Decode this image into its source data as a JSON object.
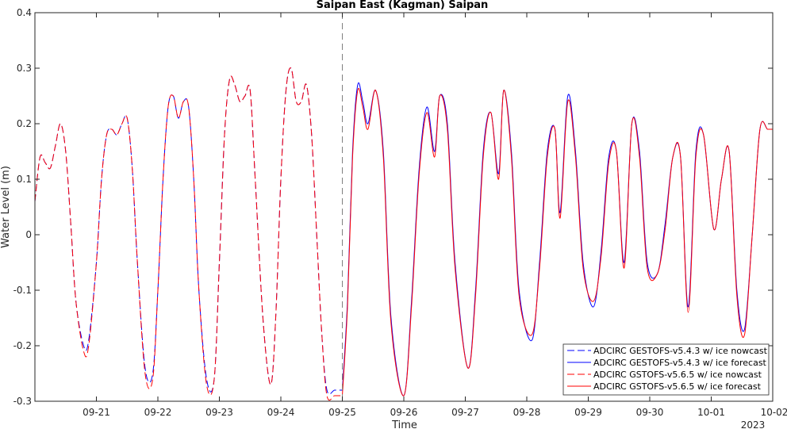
{
  "chart_data": {
    "type": "line",
    "title": "Saipan East (Kagman) Saipan",
    "xlabel": "Time",
    "ylabel": "Water Level (m)",
    "year_label": "2023",
    "ylim": [
      -0.3,
      0.4
    ],
    "yticks": [
      -0.3,
      -0.2,
      -0.1,
      0,
      0.1,
      0.2,
      0.3,
      0.4
    ],
    "ytick_labels": [
      "-0.3",
      "-0.2",
      "-0.1",
      "0",
      "0.1",
      "0.2",
      "0.3",
      "0.4"
    ],
    "xlim": [
      "2023-09-20 00:00",
      "2023-10-02 00:00"
    ],
    "xticks": [
      "2023-09-21",
      "2023-09-22",
      "2023-09-23",
      "2023-09-24",
      "2023-09-25",
      "2023-09-26",
      "2023-09-27",
      "2023-09-28",
      "2023-09-29",
      "2023-09-30",
      "2023-10-01",
      "2023-10-02"
    ],
    "xtick_labels": [
      "09-21",
      "09-22",
      "09-23",
      "09-24",
      "09-25",
      "09-26",
      "09-27",
      "09-28",
      "09-29",
      "09-30",
      "10-01",
      "10-02"
    ],
    "nowcast_forecast_divider": "2023-09-25 00:00",
    "grid": false,
    "legend_position": "bottom-right",
    "series": [
      {
        "name": "ADCIRC GESTOFS-v5.4.3 w/ ice nowcast",
        "color": "#0000ff",
        "style": "dashed",
        "x": [
          "09-20 00:00",
          "09-20 02:00",
          "09-20 04:00",
          "09-20 06:00",
          "09-20 08:00",
          "09-20 10:00",
          "09-20 12:00",
          "09-20 14:00",
          "09-20 16:00",
          "09-20 19:00",
          "09-20 21:00",
          "09-21 00:00",
          "09-21 02:00",
          "09-21 04:00",
          "09-21 06:00",
          "09-21 08:00",
          "09-21 10:00",
          "09-21 12:00",
          "09-21 14:00",
          "09-21 16:00",
          "09-21 19:00",
          "09-21 22:00",
          "09-22 00:00",
          "09-22 02:00",
          "09-22 04:00",
          "09-22 06:00",
          "09-22 08:00",
          "09-22 10:00",
          "09-22 12:00",
          "09-22 14:00",
          "09-22 16:00",
          "09-22 19:00",
          "09-22 22:00",
          "09-23 00:00",
          "09-23 02:00",
          "09-23 04:00",
          "09-23 06:00",
          "09-23 08:00",
          "09-23 10:00",
          "09-23 12:00",
          "09-23 14:00",
          "09-23 17:00",
          "09-23 20:00",
          "09-23 22:00",
          "09-24 00:00",
          "09-24 02:00",
          "09-24 04:00",
          "09-24 06:00",
          "09-24 08:00",
          "09-24 10:00",
          "09-24 12:00",
          "09-24 14:00",
          "09-24 16:00",
          "09-24 18:00",
          "09-24 21:00",
          "09-25 00:00"
        ],
        "y": [
          0.06,
          0.14,
          0.13,
          0.12,
          0.16,
          0.2,
          0.15,
          0.02,
          -0.12,
          -0.2,
          -0.19,
          -0.05,
          0.1,
          0.18,
          0.19,
          0.18,
          0.2,
          0.21,
          0.12,
          -0.05,
          -0.24,
          -0.25,
          -0.1,
          0.1,
          0.23,
          0.25,
          0.21,
          0.24,
          0.23,
          0.1,
          -0.1,
          -0.26,
          -0.26,
          -0.05,
          0.18,
          0.28,
          0.27,
          0.24,
          0.25,
          0.26,
          0.1,
          -0.15,
          -0.27,
          -0.15,
          0.1,
          0.26,
          0.3,
          0.24,
          0.24,
          0.27,
          0.18,
          0.0,
          -0.18,
          -0.28,
          -0.28,
          -0.28
        ]
      },
      {
        "name": "ADCIRC GESTOFS-v5.4.3 w/ ice forecast",
        "color": "#0000ff",
        "style": "solid",
        "x": [
          "09-25 00:00",
          "09-25 02:00",
          "09-25 04:00",
          "09-25 06:00",
          "09-25 08:00",
          "09-25 10:00",
          "09-25 13:00",
          "09-25 16:00",
          "09-25 19:00",
          "09-26 00:00",
          "09-26 03:00",
          "09-26 06:00",
          "09-26 09:00",
          "09-26 12:00",
          "09-26 14:00",
          "09-26 17:00",
          "09-26 20:00",
          "09-27 01:00",
          "09-27 04:00",
          "09-27 07:00",
          "09-27 10:00",
          "09-27 13:00",
          "09-27 15:00",
          "09-27 18:00",
          "09-27 21:00",
          "09-28 02:00",
          "09-28 05:00",
          "09-28 08:00",
          "09-28 11:00",
          "09-28 13:00",
          "09-28 16:00",
          "09-28 19:00",
          "09-28 22:00",
          "09-29 02:00",
          "09-29 05:00",
          "09-29 08:00",
          "09-29 11:00",
          "09-29 14:00",
          "09-29 17:00",
          "09-29 20:00",
          "09-29 23:00",
          "09-30 03:00",
          "09-30 06:00",
          "09-30 09:00",
          "09-30 12:00",
          "09-30 15:00",
          "09-30 18:00",
          "09-30 21:00",
          "10-01 01:00",
          "10-01 04:00",
          "10-01 07:00",
          "10-01 10:00",
          "10-01 13:00",
          "10-01 16:00",
          "10-01 19:00",
          "10-01 22:00",
          "10-02 00:00"
        ],
        "y": [
          -0.28,
          -0.12,
          0.15,
          0.27,
          0.24,
          0.2,
          0.26,
          0.15,
          -0.15,
          -0.29,
          -0.12,
          0.12,
          0.23,
          0.15,
          0.25,
          0.2,
          -0.05,
          -0.24,
          -0.1,
          0.15,
          0.22,
          0.11,
          0.26,
          0.15,
          -0.1,
          -0.19,
          -0.05,
          0.15,
          0.19,
          0.04,
          0.25,
          0.15,
          -0.05,
          -0.13,
          -0.03,
          0.14,
          0.15,
          -0.05,
          0.2,
          0.15,
          -0.05,
          -0.07,
          0.02,
          0.14,
          0.14,
          -0.13,
          0.15,
          0.18,
          0.01,
          0.1,
          0.15,
          -0.1,
          -0.17,
          0.0,
          0.19,
          0.19,
          0.19
        ]
      },
      {
        "name": "ADCIRC GSTOFS-v5.6.5 w/ ice nowcast",
        "color": "#ff0000",
        "style": "dashed",
        "x": [
          "09-20 00:00",
          "09-20 02:00",
          "09-20 04:00",
          "09-20 06:00",
          "09-20 08:00",
          "09-20 10:00",
          "09-20 12:00",
          "09-20 14:00",
          "09-20 16:00",
          "09-20 19:00",
          "09-20 21:00",
          "09-21 00:00",
          "09-21 02:00",
          "09-21 04:00",
          "09-21 06:00",
          "09-21 08:00",
          "09-21 10:00",
          "09-21 12:00",
          "09-21 14:00",
          "09-21 16:00",
          "09-21 19:00",
          "09-21 22:00",
          "09-22 00:00",
          "09-22 02:00",
          "09-22 04:00",
          "09-22 06:00",
          "09-22 08:00",
          "09-22 10:00",
          "09-22 12:00",
          "09-22 14:00",
          "09-22 16:00",
          "09-22 19:00",
          "09-22 22:00",
          "09-23 00:00",
          "09-23 02:00",
          "09-23 04:00",
          "09-23 06:00",
          "09-23 08:00",
          "09-23 10:00",
          "09-23 12:00",
          "09-23 14:00",
          "09-23 17:00",
          "09-23 20:00",
          "09-23 22:00",
          "09-24 00:00",
          "09-24 02:00",
          "09-24 04:00",
          "09-24 06:00",
          "09-24 08:00",
          "09-24 10:00",
          "09-24 12:00",
          "09-24 14:00",
          "09-24 16:00",
          "09-24 18:00",
          "09-24 21:00",
          "09-25 00:00"
        ],
        "y": [
          0.06,
          0.14,
          0.13,
          0.12,
          0.16,
          0.2,
          0.15,
          0.02,
          -0.12,
          -0.21,
          -0.2,
          -0.05,
          0.1,
          0.18,
          0.19,
          0.18,
          0.2,
          0.21,
          0.12,
          -0.05,
          -0.25,
          -0.26,
          -0.1,
          0.1,
          0.23,
          0.25,
          0.21,
          0.24,
          0.23,
          0.1,
          -0.1,
          -0.27,
          -0.26,
          -0.05,
          0.18,
          0.28,
          0.27,
          0.24,
          0.25,
          0.26,
          0.1,
          -0.15,
          -0.27,
          -0.15,
          0.1,
          0.26,
          0.3,
          0.24,
          0.24,
          0.27,
          0.18,
          0.0,
          -0.18,
          -0.29,
          -0.29,
          -0.29
        ]
      },
      {
        "name": "ADCIRC GSTOFS-v5.6.5 w/ ice forecast",
        "color": "#ff0000",
        "style": "solid",
        "x": [
          "09-25 00:00",
          "09-25 02:00",
          "09-25 04:00",
          "09-25 06:00",
          "09-25 08:00",
          "09-25 10:00",
          "09-25 13:00",
          "09-25 16:00",
          "09-25 19:00",
          "09-26 00:00",
          "09-26 03:00",
          "09-26 06:00",
          "09-26 09:00",
          "09-26 12:00",
          "09-26 14:00",
          "09-26 17:00",
          "09-26 20:00",
          "09-27 01:00",
          "09-27 04:00",
          "09-27 07:00",
          "09-27 10:00",
          "09-27 13:00",
          "09-27 15:00",
          "09-27 18:00",
          "09-27 21:00",
          "09-28 02:00",
          "09-28 05:00",
          "09-28 08:00",
          "09-28 11:00",
          "09-28 13:00",
          "09-28 16:00",
          "09-28 19:00",
          "09-28 22:00",
          "09-29 02:00",
          "09-29 05:00",
          "09-29 08:00",
          "09-29 11:00",
          "09-29 14:00",
          "09-29 17:00",
          "09-29 20:00",
          "09-29 23:00",
          "09-30 03:00",
          "09-30 06:00",
          "09-30 09:00",
          "09-30 12:00",
          "09-30 15:00",
          "09-30 18:00",
          "09-30 21:00",
          "10-01 01:00",
          "10-01 04:00",
          "10-01 07:00",
          "10-01 10:00",
          "10-01 13:00",
          "10-01 16:00",
          "10-01 19:00",
          "10-01 22:00",
          "10-02 00:00"
        ],
        "y": [
          -0.29,
          -0.13,
          0.14,
          0.26,
          0.23,
          0.19,
          0.26,
          0.14,
          -0.16,
          -0.29,
          -0.13,
          0.11,
          0.22,
          0.14,
          0.25,
          0.19,
          -0.06,
          -0.24,
          -0.11,
          0.14,
          0.22,
          0.1,
          0.26,
          0.14,
          -0.11,
          -0.18,
          -0.06,
          0.14,
          0.19,
          0.03,
          0.24,
          0.14,
          -0.06,
          -0.12,
          -0.04,
          0.13,
          0.15,
          -0.06,
          0.2,
          0.14,
          -0.06,
          -0.07,
          0.01,
          0.14,
          0.14,
          -0.14,
          0.14,
          0.18,
          0.01,
          0.1,
          0.15,
          -0.11,
          -0.18,
          0.0,
          0.19,
          0.19,
          0.19
        ]
      }
    ]
  }
}
